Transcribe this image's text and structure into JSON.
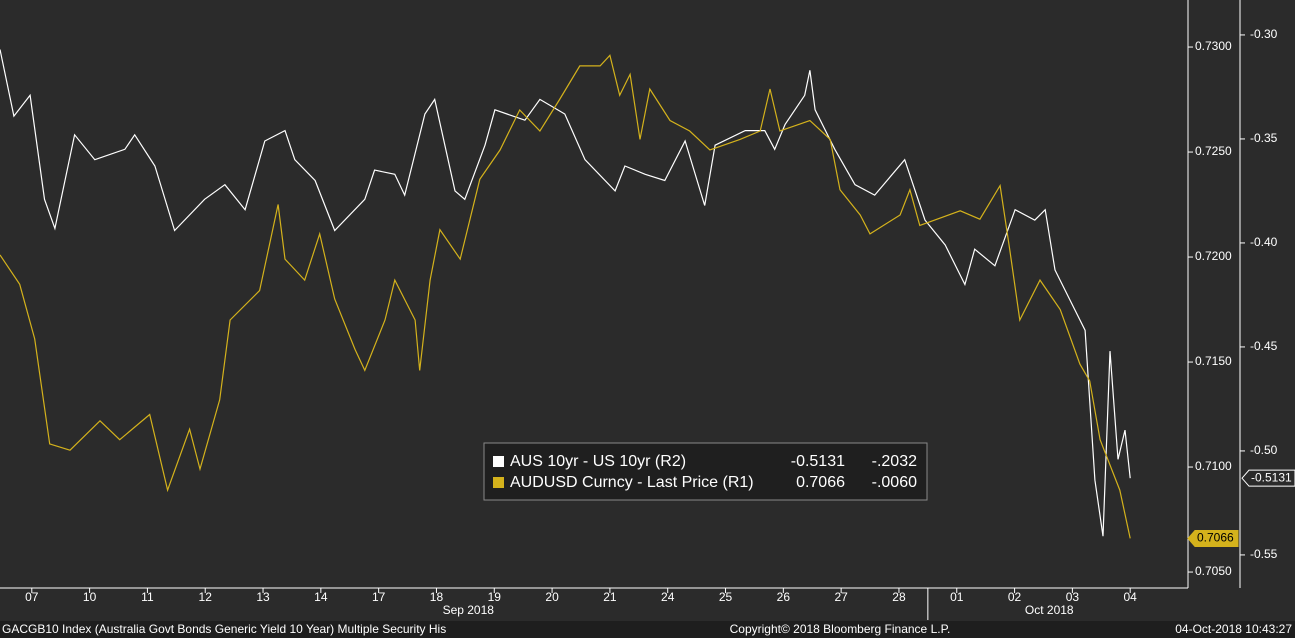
{
  "chart_data": {
    "type": "line",
    "xlim": [
      -0.55,
      20
    ],
    "xticks": [
      {
        "value": 0,
        "label": "07"
      },
      {
        "value": 1,
        "label": "10"
      },
      {
        "value": 2,
        "label": "11"
      },
      {
        "value": 3,
        "label": "12"
      },
      {
        "value": 4,
        "label": "13"
      },
      {
        "value": 5,
        "label": "14"
      },
      {
        "value": 6,
        "label": "17"
      },
      {
        "value": 7,
        "label": "18"
      },
      {
        "value": 8,
        "label": "19"
      },
      {
        "value": 9,
        "label": "20"
      },
      {
        "value": 10,
        "label": "21"
      },
      {
        "value": 11,
        "label": "24"
      },
      {
        "value": 12,
        "label": "25"
      },
      {
        "value": 13,
        "label": "26"
      },
      {
        "value": 14,
        "label": "27"
      },
      {
        "value": 15,
        "label": "28"
      },
      {
        "value": 16,
        "label": "01"
      },
      {
        "value": 17,
        "label": "02"
      },
      {
        "value": 18,
        "label": "03"
      },
      {
        "value": 19,
        "label": "04"
      }
    ],
    "month_labels": [
      {
        "value": 7.55,
        "label": "Sep 2018"
      },
      {
        "value": 17.6,
        "label": "Oct 2018"
      }
    ],
    "month_divider": 15.5,
    "ylim": [
      0.70424,
      0.73224
    ],
    "yticks": [
      {
        "value": 0.73,
        "label": "0.7300"
      },
      {
        "value": 0.725,
        "label": "0.7250"
      },
      {
        "value": 0.72,
        "label": "0.7200"
      },
      {
        "value": 0.715,
        "label": "0.7150"
      },
      {
        "value": 0.71,
        "label": "0.7100"
      },
      {
        "value": 0.705,
        "label": "0.7050"
      }
    ],
    "y2lim": [
      -0.5659,
      -0.2832
    ],
    "y2ticks": [
      {
        "value": -0.3,
        "label": "-0.30"
      },
      {
        "value": -0.35,
        "label": "-0.35"
      },
      {
        "value": -0.4,
        "label": "-0.40"
      },
      {
        "value": -0.45,
        "label": "-0.45"
      },
      {
        "value": -0.5,
        "label": "-0.50"
      },
      {
        "value": -0.55,
        "label": "-0.55"
      }
    ],
    "series": [
      {
        "name": "AUS 10yr - US 10yr (R2)",
        "color": "#ffffff",
        "axis": "y2",
        "legend_value": "-0.5131",
        "legend_change": "-.2032",
        "x": [
          -0.55,
          -0.31,
          -0.03,
          0.22,
          0.4,
          0.74,
          1.09,
          1.61,
          1.78,
          2.13,
          2.47,
          2.99,
          3.34,
          3.69,
          4.03,
          4.38,
          4.55,
          4.9,
          5.24,
          5.76,
          5.93,
          6.28,
          6.45,
          6.8,
          6.97,
          7.32,
          7.49,
          7.84,
          8.01,
          8.53,
          8.79,
          9.22,
          9.57,
          10.09,
          10.26,
          10.61,
          10.95,
          11.3,
          11.64,
          11.82,
          12.34,
          12.68,
          12.85,
          13.03,
          13.37,
          13.46,
          13.55,
          13.89,
          14.24,
          14.58,
          15.1,
          15.45,
          15.8,
          16.14,
          16.31,
          16.66,
          17.01,
          17.35,
          17.53,
          17.7,
          18.04,
          18.22,
          18.39,
          18.53,
          18.65,
          18.79,
          18.91,
          19.0
        ],
        "values": [
          -0.307,
          -0.339,
          -0.329,
          -0.379,
          -0.393,
          -0.348,
          -0.36,
          -0.355,
          -0.348,
          -0.363,
          -0.394,
          -0.379,
          -0.372,
          -0.384,
          -0.351,
          -0.346,
          -0.36,
          -0.37,
          -0.394,
          -0.379,
          -0.365,
          -0.367,
          -0.377,
          -0.338,
          -0.331,
          -0.375,
          -0.379,
          -0.353,
          -0.336,
          -0.341,
          -0.331,
          -0.338,
          -0.36,
          -0.375,
          -0.363,
          -0.367,
          -0.37,
          -0.351,
          -0.382,
          -0.353,
          -0.346,
          -0.346,
          -0.355,
          -0.343,
          -0.329,
          -0.317,
          -0.336,
          -0.355,
          -0.372,
          -0.377,
          -0.36,
          -0.389,
          -0.401,
          -0.42,
          -0.403,
          -0.411,
          -0.384,
          -0.389,
          -0.384,
          -0.413,
          -0.432,
          -0.442,
          -0.514,
          -0.541,
          -0.452,
          -0.504,
          -0.49,
          -0.5131
        ]
      },
      {
        "name": "AUDUSD Curncy - Last Price (R1)",
        "color": "#d4b21c",
        "axis": "y",
        "legend_value": "0.7066",
        "legend_change": "-.0060",
        "x": [
          -0.55,
          -0.21,
          0.05,
          0.31,
          0.66,
          1.18,
          1.52,
          2.04,
          2.35,
          2.73,
          2.91,
          3.25,
          3.43,
          3.94,
          4.26,
          4.38,
          4.72,
          4.98,
          5.24,
          5.59,
          5.76,
          6.11,
          6.28,
          6.63,
          6.71,
          6.89,
          7.06,
          7.41,
          7.75,
          8.1,
          8.44,
          8.79,
          9.13,
          9.48,
          9.83,
          10.0,
          10.17,
          10.35,
          10.52,
          10.69,
          11.04,
          11.38,
          11.73,
          12.25,
          12.6,
          12.77,
          12.94,
          13.46,
          13.81,
          13.98,
          14.33,
          14.5,
          15.02,
          15.19,
          15.36,
          16.06,
          16.4,
          16.75,
          16.92,
          17.09,
          17.44,
          17.79,
          18.13,
          18.3,
          18.48,
          18.82,
          19.0
        ],
        "values": [
          0.7201,
          0.7187,
          0.7161,
          0.7111,
          0.7108,
          0.7122,
          0.7113,
          0.7125,
          0.7089,
          0.7118,
          0.7099,
          0.7132,
          0.717,
          0.7184,
          0.7225,
          0.7199,
          0.7189,
          0.7211,
          0.718,
          0.7156,
          0.7146,
          0.717,
          0.7189,
          0.717,
          0.7146,
          0.7189,
          0.7213,
          0.7199,
          0.7237,
          0.7251,
          0.727,
          0.726,
          0.7275,
          0.7291,
          0.7291,
          0.7296,
          0.7277,
          0.7287,
          0.7256,
          0.728,
          0.7265,
          0.726,
          0.7251,
          0.7256,
          0.726,
          0.728,
          0.726,
          0.7265,
          0.7256,
          0.7232,
          0.722,
          0.7211,
          0.722,
          0.7232,
          0.7215,
          0.7222,
          0.7218,
          0.7234,
          0.7203,
          0.717,
          0.7189,
          0.7175,
          0.7149,
          0.7141,
          0.7113,
          0.7089,
          0.7066
        ]
      }
    ],
    "footer_left": "GACGB10 Index (Australia Govt Bonds Generic Yield 10 Year) Multiple Security His",
    "footer_center": "Copyright© 2018 Bloomberg Finance L.P.",
    "footer_right": "04-Oct-2018 10:43:27"
  }
}
